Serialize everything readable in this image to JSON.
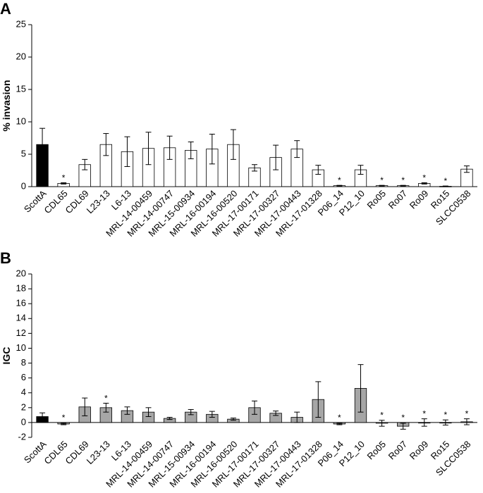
{
  "chart_data": [
    {
      "type": "bar",
      "panel": "A",
      "y_label": "% invasion",
      "categories": [
        "ScottA",
        "CDL65",
        "CDL69",
        "L23-13",
        "L6-13",
        "MRL-14-00459",
        "MRL-14-00747",
        "MRL-15-00934",
        "MRL-16-00194",
        "MRL-16-00520",
        "MRL-17-00171",
        "MRL-17-00327",
        "MRL-17-00443",
        "MRL-17-01328",
        "P06_14",
        "P12_10",
        "Ro05",
        "Ro07",
        "Ro09",
        "Ro15",
        "SLCC0538"
      ],
      "values": [
        6.5,
        0.5,
        3.4,
        6.5,
        5.4,
        5.9,
        6.0,
        5.6,
        5.8,
        6.5,
        2.9,
        4.5,
        5.8,
        2.6,
        0.15,
        2.6,
        0.15,
        0.15,
        0.5,
        0.05,
        2.7
      ],
      "errors": [
        2.5,
        0.1,
        0.8,
        1.7,
        2.3,
        2.5,
        1.8,
        1.3,
        2.3,
        2.3,
        0.5,
        1.9,
        1.3,
        0.7,
        0.05,
        0.7,
        0.05,
        0.05,
        0.1,
        0.05,
        0.5
      ],
      "significance": [
        null,
        "*",
        null,
        null,
        null,
        null,
        null,
        null,
        null,
        null,
        null,
        null,
        null,
        null,
        "*",
        null,
        "*",
        "*",
        "*",
        "*",
        null
      ],
      "colors": [
        "#000000",
        "#ffffff",
        "#ffffff",
        "#ffffff",
        "#ffffff",
        "#ffffff",
        "#ffffff",
        "#ffffff",
        "#ffffff",
        "#ffffff",
        "#ffffff",
        "#ffffff",
        "#ffffff",
        "#ffffff",
        "#ffffff",
        "#ffffff",
        "#ffffff",
        "#ffffff",
        "#ffffff",
        "#ffffff",
        "#ffffff"
      ],
      "ylim": [
        0,
        25
      ],
      "yticks": [
        0,
        5,
        10,
        15,
        20,
        25
      ]
    },
    {
      "type": "bar",
      "panel": "B",
      "y_label": "IGC",
      "categories": [
        "ScottA",
        "CDL65",
        "CDL69",
        "L23-13",
        "L6-13",
        "MRL-14-00459",
        "MRL-14-00747",
        "MRL-15-00934",
        "MRL-16-00194",
        "MRL-16-00520",
        "MRL-17-00171",
        "MRL-17-00327",
        "MRL-17-00443",
        "MRL-17-01328",
        "P06_14",
        "P12_10",
        "Ro05",
        "Ro07",
        "Ro09",
        "Ro15",
        "SLCC0538"
      ],
      "values": [
        0.8,
        -0.2,
        2.1,
        2.0,
        1.6,
        1.4,
        0.55,
        1.4,
        1.1,
        0.45,
        2.0,
        1.25,
        0.7,
        3.1,
        -0.2,
        4.6,
        -0.1,
        -0.5,
        0.0,
        0.0,
        0.1
      ],
      "errors": [
        0.5,
        0.1,
        1.2,
        0.6,
        0.5,
        0.6,
        0.15,
        0.35,
        0.4,
        0.15,
        0.9,
        0.3,
        0.7,
        2.4,
        0.1,
        3.2,
        0.4,
        0.4,
        0.5,
        0.35,
        0.4
      ],
      "significance": [
        null,
        "*",
        null,
        "*",
        null,
        null,
        null,
        null,
        null,
        null,
        null,
        null,
        null,
        null,
        "*",
        null,
        "*",
        "*",
        "*",
        "*",
        "*"
      ],
      "colors": [
        "#000000",
        "#a6a6a6",
        "#a6a6a6",
        "#a6a6a6",
        "#a6a6a6",
        "#a6a6a6",
        "#a6a6a6",
        "#a6a6a6",
        "#a6a6a6",
        "#a6a6a6",
        "#a6a6a6",
        "#a6a6a6",
        "#a6a6a6",
        "#a6a6a6",
        "#a6a6a6",
        "#a6a6a6",
        "#a6a6a6",
        "#a6a6a6",
        "#a6a6a6",
        "#a6a6a6",
        "#a6a6a6"
      ],
      "ylim": [
        -2,
        20
      ],
      "yticks": [
        -2,
        0,
        2,
        4,
        6,
        8,
        10,
        12,
        14,
        16,
        18,
        20
      ]
    }
  ]
}
